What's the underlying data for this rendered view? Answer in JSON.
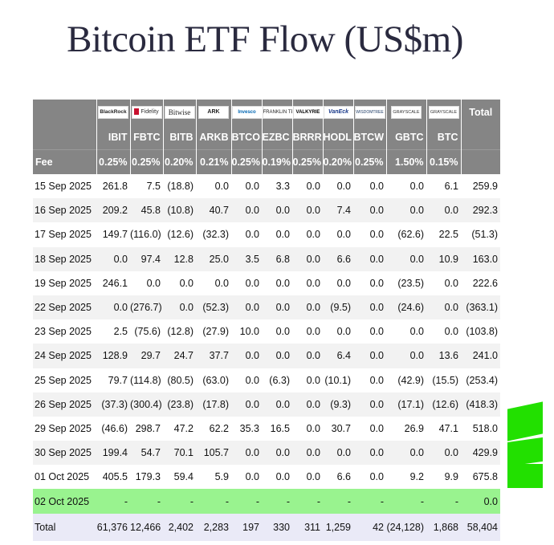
{
  "title": "Bitcoin ETF Flow (US$m)",
  "logos": [
    {
      "text": "BlackRock",
      "icon": "blackrock-logo",
      "cls": "bold"
    },
    {
      "text": "Fidelity",
      "icon": "fidelity-logo",
      "cls": "fid"
    },
    {
      "text": "Bitwise",
      "icon": "bitwise-logo",
      "cls": "bw"
    },
    {
      "text": "ARK",
      "icon": "ark-logo",
      "cls": "ark"
    },
    {
      "text": "Invesco",
      "icon": "invesco-logo",
      "cls": "inv"
    },
    {
      "text": "FRANKLIN TEMPLETON",
      "icon": "franklin-templeton-logo",
      "cls": ""
    },
    {
      "text": "VALKYRIE",
      "icon": "valkyrie-logo",
      "cls": "vk"
    },
    {
      "text": "VanEck",
      "icon": "vaneck-logo",
      "cls": "ve"
    },
    {
      "text": "WISDOMTREE",
      "icon": "wisdomtree-logo",
      "cls": "wt"
    },
    {
      "text": "GRAYSCALE",
      "icon": "grayscale-logo",
      "cls": "gs"
    },
    {
      "text": "GRAYSCALE",
      "icon": "grayscale-mini-logo",
      "cls": "gs"
    }
  ],
  "header": {
    "total_label": "Total",
    "tickers": [
      "IBIT",
      "FBTC",
      "BITB",
      "ARKB",
      "BTCO",
      "EZBC",
      "BRRR",
      "HODL",
      "BTCW",
      "GBTC",
      "BTC"
    ],
    "fee_label": "Fee",
    "fees": [
      "0.25%",
      "0.25%",
      "0.20%",
      "0.21%",
      "0.25%",
      "0.19%",
      "0.25%",
      "0.20%",
      "0.25%",
      "1.50%",
      "0.15%"
    ]
  },
  "rows": [
    {
      "date": "15 Sep 2025",
      "values": [
        "261.8",
        "7.5",
        "(18.8)",
        "0.0",
        "0.0",
        "3.3",
        "0.0",
        "0.0",
        "0.0",
        "0.0",
        "6.1",
        "259.9"
      ]
    },
    {
      "date": "16 Sep 2025",
      "values": [
        "209.2",
        "45.8",
        "(10.8)",
        "40.7",
        "0.0",
        "0.0",
        "0.0",
        "7.4",
        "0.0",
        "0.0",
        "0.0",
        "292.3"
      ]
    },
    {
      "date": "17 Sep 2025",
      "values": [
        "149.7",
        "(116.0)",
        "(12.6)",
        "(32.3)",
        "0.0",
        "0.0",
        "0.0",
        "0.0",
        "0.0",
        "(62.6)",
        "22.5",
        "(51.3)"
      ]
    },
    {
      "date": "18 Sep 2025",
      "values": [
        "0.0",
        "97.4",
        "12.8",
        "25.0",
        "3.5",
        "6.8",
        "0.0",
        "6.6",
        "0.0",
        "0.0",
        "10.9",
        "163.0"
      ]
    },
    {
      "date": "19 Sep 2025",
      "values": [
        "246.1",
        "0.0",
        "0.0",
        "0.0",
        "0.0",
        "0.0",
        "0.0",
        "0.0",
        "0.0",
        "(23.5)",
        "0.0",
        "222.6"
      ]
    },
    {
      "date": "22 Sep 2025",
      "values": [
        "0.0",
        "(276.7)",
        "0.0",
        "(52.3)",
        "0.0",
        "0.0",
        "0.0",
        "(9.5)",
        "0.0",
        "(24.6)",
        "0.0",
        "(363.1)"
      ]
    },
    {
      "date": "23 Sep 2025",
      "values": [
        "2.5",
        "(75.6)",
        "(12.8)",
        "(27.9)",
        "10.0",
        "0.0",
        "0.0",
        "0.0",
        "0.0",
        "0.0",
        "0.0",
        "(103.8)"
      ]
    },
    {
      "date": "24 Sep 2025",
      "values": [
        "128.9",
        "29.7",
        "24.7",
        "37.7",
        "0.0",
        "0.0",
        "0.0",
        "6.4",
        "0.0",
        "0.0",
        "13.6",
        "241.0"
      ]
    },
    {
      "date": "25 Sep 2025",
      "values": [
        "79.7",
        "(114.8)",
        "(80.5)",
        "(63.0)",
        "0.0",
        "(6.3)",
        "0.0",
        "(10.1)",
        "0.0",
        "(42.9)",
        "(15.5)",
        "(253.4)"
      ]
    },
    {
      "date": "26 Sep 2025",
      "values": [
        "(37.3)",
        "(300.4)",
        "(23.8)",
        "(17.8)",
        "0.0",
        "0.0",
        "0.0",
        "(9.3)",
        "0.0",
        "(17.1)",
        "(12.6)",
        "(418.3)"
      ]
    },
    {
      "date": "29 Sep 2025",
      "values": [
        "(46.6)",
        "298.7",
        "47.2",
        "62.2",
        "35.3",
        "16.5",
        "0.0",
        "30.7",
        "0.0",
        "26.9",
        "47.1",
        "518.0"
      ]
    },
    {
      "date": "30 Sep 2025",
      "values": [
        "199.4",
        "54.7",
        "70.1",
        "105.7",
        "0.0",
        "0.0",
        "0.0",
        "0.0",
        "0.0",
        "0.0",
        "0.0",
        "429.9"
      ]
    },
    {
      "date": "01 Oct 2025",
      "values": [
        "405.5",
        "179.3",
        "59.4",
        "5.9",
        "0.0",
        "0.0",
        "0.0",
        "6.6",
        "0.0",
        "9.2",
        "9.9",
        "675.8"
      ]
    },
    {
      "date": "02 Oct 2025",
      "highlight": true,
      "values": [
        "-",
        "-",
        "-",
        "-",
        "-",
        "-",
        "-",
        "-",
        "-",
        "-",
        "-",
        "0.0"
      ]
    }
  ],
  "total": {
    "label": "Total",
    "values": [
      "61,376",
      "12,466",
      "2,402",
      "2,283",
      "197",
      "330",
      "311",
      "1,259",
      "42",
      "(24,128)",
      "1,868",
      "58,404"
    ]
  },
  "watermark_color": "#22e000"
}
